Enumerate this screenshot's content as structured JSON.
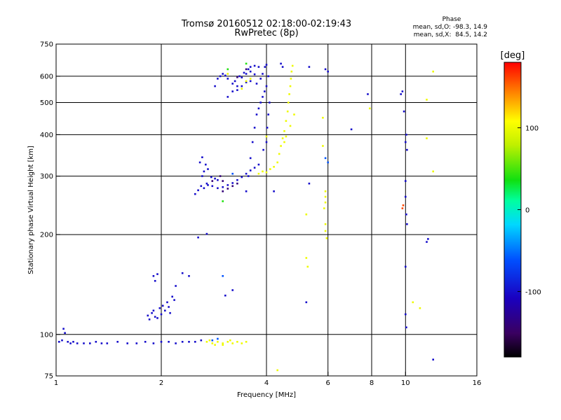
{
  "chart_data": {
    "type": "scatter",
    "title": "Tromsø 20160512 02:18:00-02:19:43",
    "subtitle": "RwPretec (8p)",
    "xlabel": "Frequency [MHz]",
    "ylabel": "Stationary phase Virtual Height [km]",
    "x_scale": "log",
    "y_scale": "log",
    "xlim": [
      1,
      16
    ],
    "ylim": [
      75,
      750
    ],
    "xticks": [
      1,
      2,
      4,
      6,
      8,
      10,
      16
    ],
    "yticks": [
      75,
      100,
      200,
      300,
      400,
      500,
      600,
      750
    ],
    "x_gridlines": [
      2,
      4,
      6,
      8,
      10
    ],
    "y_gridlines": [
      100,
      200,
      300,
      400,
      500,
      600
    ],
    "grid": true,
    "stats": {
      "heading": "Phase",
      "line1": "mean, sd,O: -98.3, 14.9",
      "line2": "mean, sd,X:  84.5, 14.2"
    },
    "colorbar": {
      "label": "[deg]",
      "range": [
        -180,
        180
      ],
      "ticks": [
        100,
        0,
        -100
      ],
      "colormap": "rainbow (black → purple → blue → cyan → green → yellow → red)"
    },
    "series": [
      {
        "phase": -100,
        "points": [
          [
            1.02,
            95
          ],
          [
            1.04,
            96
          ],
          [
            1.05,
            104
          ],
          [
            1.06,
            101
          ],
          [
            1.08,
            95
          ],
          [
            1.1,
            94
          ],
          [
            1.12,
            95
          ],
          [
            1.15,
            94
          ],
          [
            1.2,
            94
          ],
          [
            1.25,
            94
          ],
          [
            1.3,
            95
          ],
          [
            1.35,
            94
          ],
          [
            1.4,
            94
          ],
          [
            1.5,
            95
          ],
          [
            1.6,
            94
          ],
          [
            1.7,
            94
          ],
          [
            1.8,
            95
          ],
          [
            1.9,
            94
          ],
          [
            2.0,
            95
          ],
          [
            2.1,
            95
          ],
          [
            2.2,
            94
          ],
          [
            2.3,
            95
          ],
          [
            2.4,
            95
          ],
          [
            2.5,
            95
          ],
          [
            2.6,
            96
          ],
          [
            1.83,
            114
          ],
          [
            1.85,
            111
          ],
          [
            1.88,
            116
          ],
          [
            1.9,
            118
          ],
          [
            1.92,
            113
          ],
          [
            1.95,
            112
          ],
          [
            1.98,
            120
          ],
          [
            2.0,
            115
          ],
          [
            2.02,
            122
          ],
          [
            2.05,
            118
          ],
          [
            2.08,
            125
          ],
          [
            2.1,
            121
          ],
          [
            2.12,
            116
          ],
          [
            2.15,
            130
          ],
          [
            2.18,
            127
          ],
          [
            1.9,
            150
          ],
          [
            1.92,
            145
          ],
          [
            1.95,
            152
          ],
          [
            2.2,
            140
          ],
          [
            2.3,
            153
          ],
          [
            2.4,
            150
          ],
          [
            3.05,
            131
          ],
          [
            3.2,
            136
          ],
          [
            2.55,
            196
          ],
          [
            2.7,
            201
          ],
          [
            2.5,
            265
          ],
          [
            2.55,
            272
          ],
          [
            2.6,
            280
          ],
          [
            2.62,
            300
          ],
          [
            2.65,
            310
          ],
          [
            2.58,
            330
          ],
          [
            2.62,
            342
          ],
          [
            2.68,
            325
          ],
          [
            2.72,
            315
          ],
          [
            2.78,
            298
          ],
          [
            2.85,
            295
          ],
          [
            2.9,
            292
          ],
          [
            2.7,
            285
          ],
          [
            2.65,
            276
          ],
          [
            2.72,
            282
          ],
          [
            2.8,
            280
          ],
          [
            2.9,
            276
          ],
          [
            3.0,
            278
          ],
          [
            3.1,
            282
          ],
          [
            3.2,
            286
          ],
          [
            3.3,
            292
          ],
          [
            3.4,
            298
          ],
          [
            3.5,
            305
          ],
          [
            3.6,
            312
          ],
          [
            3.7,
            318
          ],
          [
            3.8,
            325
          ],
          [
            3.1,
            520
          ],
          [
            3.2,
            540
          ],
          [
            3.3,
            560
          ],
          [
            3.25,
            580
          ],
          [
            3.35,
            600
          ],
          [
            3.45,
            615
          ],
          [
            3.55,
            630
          ],
          [
            3.6,
            640
          ],
          [
            3.7,
            645
          ],
          [
            3.8,
            640
          ],
          [
            3.5,
            610
          ],
          [
            3.6,
            620
          ],
          [
            3.7,
            608
          ],
          [
            3.4,
            595
          ],
          [
            2.85,
            560
          ],
          [
            2.9,
            590
          ],
          [
            2.95,
            600
          ],
          [
            3.0,
            610
          ],
          [
            3.05,
            603
          ],
          [
            3.1,
            590
          ],
          [
            3.2,
            570
          ],
          [
            3.3,
            545
          ],
          [
            3.4,
            560
          ],
          [
            3.5,
            575
          ],
          [
            3.6,
            580
          ],
          [
            3.75,
            570
          ],
          [
            3.85,
            590
          ],
          [
            3.9,
            610
          ],
          [
            3.5,
            270
          ],
          [
            3.55,
            300
          ],
          [
            3.6,
            340
          ],
          [
            3.65,
            380
          ],
          [
            3.7,
            420
          ],
          [
            3.75,
            460
          ],
          [
            3.8,
            480
          ],
          [
            3.85,
            500
          ],
          [
            3.9,
            520
          ],
          [
            3.95,
            540
          ],
          [
            4.0,
            560
          ],
          [
            4.05,
            600
          ],
          [
            3.96,
            640
          ],
          [
            4.0,
            650
          ],
          [
            4.02,
            420
          ],
          [
            4.05,
            460
          ],
          [
            4.08,
            500
          ],
          [
            4.0,
            380
          ],
          [
            3.92,
            360
          ],
          [
            4.2,
            270
          ],
          [
            4.4,
            655
          ],
          [
            4.45,
            640
          ],
          [
            5.2,
            125
          ],
          [
            5.3,
            285
          ],
          [
            5.3,
            640
          ],
          [
            5.9,
            630
          ],
          [
            6.0,
            620
          ],
          [
            7.0,
            415
          ],
          [
            7.8,
            530
          ],
          [
            9.7,
            530
          ],
          [
            9.8,
            540
          ],
          [
            9.9,
            470
          ],
          [
            10.0,
            380
          ],
          [
            10.05,
            400
          ],
          [
            10.1,
            360
          ],
          [
            10.0,
            290
          ],
          [
            10.0,
            260
          ],
          [
            10.05,
            230
          ],
          [
            10.1,
            215
          ],
          [
            10.0,
            160
          ],
          [
            10.0,
            115
          ],
          [
            10.05,
            105
          ],
          [
            11.5,
            190
          ],
          [
            11.6,
            194
          ],
          [
            12.0,
            84
          ]
        ]
      },
      {
        "phase": 100,
        "points": [
          [
            2.7,
            95
          ],
          [
            2.75,
            96
          ],
          [
            2.8,
            94
          ],
          [
            2.9,
            95
          ],
          [
            3.0,
            94
          ],
          [
            3.1,
            95
          ],
          [
            3.2,
            94
          ],
          [
            3.3,
            95
          ],
          [
            3.4,
            94
          ],
          [
            3.5,
            95
          ],
          [
            2.85,
            93
          ],
          [
            3.0,
            93
          ],
          [
            3.15,
            96
          ],
          [
            3.8,
            305
          ],
          [
            3.9,
            310
          ],
          [
            4.0,
            308
          ],
          [
            4.1,
            315
          ],
          [
            4.2,
            320
          ],
          [
            4.3,
            330
          ],
          [
            4.35,
            350
          ],
          [
            4.4,
            370
          ],
          [
            4.45,
            390
          ],
          [
            4.5,
            410
          ],
          [
            4.55,
            440
          ],
          [
            4.6,
            470
          ],
          [
            4.62,
            500
          ],
          [
            4.65,
            530
          ],
          [
            4.68,
            560
          ],
          [
            4.7,
            590
          ],
          [
            4.72,
            620
          ],
          [
            4.75,
            645
          ],
          [
            4.5,
            380
          ],
          [
            4.55,
            395
          ],
          [
            4.68,
            425
          ],
          [
            4.8,
            460
          ],
          [
            3.5,
            580
          ],
          [
            3.6,
            590
          ],
          [
            3.4,
            550
          ],
          [
            3.1,
            610
          ],
          [
            4.0,
            395
          ],
          [
            4.3,
            78
          ],
          [
            5.2,
            230
          ],
          [
            5.2,
            170
          ],
          [
            5.25,
            160
          ],
          [
            5.8,
            450
          ],
          [
            5.8,
            370
          ],
          [
            5.9,
            270
          ],
          [
            5.9,
            260
          ],
          [
            5.9,
            250
          ],
          [
            5.85,
            240
          ],
          [
            5.9,
            215
          ],
          [
            5.9,
            205
          ],
          [
            5.95,
            195
          ],
          [
            7.9,
            480
          ],
          [
            10.5,
            125
          ],
          [
            11.0,
            120
          ],
          [
            11.5,
            390
          ],
          [
            11.5,
            510
          ],
          [
            12.0,
            620
          ],
          [
            12.0,
            310
          ]
        ]
      },
      {
        "phase": -60,
        "points": [
          [
            2.8,
            96
          ],
          [
            2.9,
            97
          ],
          [
            5.9,
            340
          ],
          [
            6.0,
            330
          ],
          [
            3.2,
            305
          ],
          [
            3.0,
            150
          ]
        ]
      },
      {
        "phase": -140,
        "points": [
          [
            3.0,
            270
          ],
          [
            3.1,
            275
          ],
          [
            3.2,
            280
          ],
          [
            3.3,
            285
          ],
          [
            2.95,
            300
          ],
          [
            3.0,
            290
          ],
          [
            2.8,
            290
          ],
          [
            3.3,
            596
          ],
          [
            3.5,
            630
          ]
        ]
      },
      {
        "phase": 40,
        "points": [
          [
            3.0,
            252
          ],
          [
            3.1,
            630
          ],
          [
            3.5,
            655
          ]
        ]
      },
      {
        "phase": 160,
        "points": [
          [
            9.8,
            240
          ],
          [
            9.85,
            245
          ]
        ]
      }
    ]
  }
}
